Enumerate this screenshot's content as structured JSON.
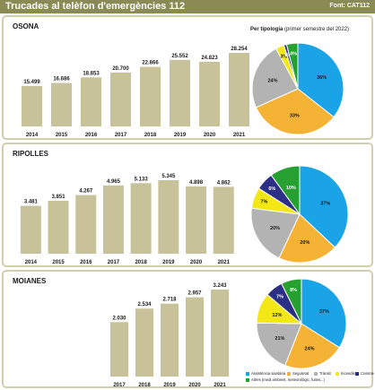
{
  "header": {
    "title": "Trucades al telèfon d'emergències 112",
    "source": "Font: CAT112"
  },
  "pie_title": "Per tipologia",
  "pie_title_note": " (primer semestre del 2022)",
  "colors": {
    "bar": "#c8c29b",
    "header": "#8a8a55",
    "panel_border": "#d2cfae",
    "categories": [
      "#1aa3e6",
      "#f5b335",
      "#b3b3b3",
      "#f3e816",
      "#2b2f86",
      "#26a030"
    ]
  },
  "legend": [
    "Assistència sanitària",
    "Seguretat",
    "Trànsit",
    "Incendis",
    "Civisme",
    "Altres (medi ambient, meteorològic, fuites...)"
  ],
  "chart_data": [
    {
      "type": "bar",
      "title": "OSONA",
      "categories": [
        "2014",
        "2015",
        "2016",
        "2017",
        "2018",
        "2019",
        "2020",
        "2021"
      ],
      "values": [
        15499,
        16686,
        18853,
        20700,
        22866,
        25552,
        24823,
        28254
      ],
      "value_labels": [
        "15.499",
        "16.686",
        "18.853",
        "20.700",
        "22.866",
        "25.552",
        "24.823",
        "28.254"
      ],
      "ylim": [
        0,
        28254
      ]
    },
    {
      "type": "pie",
      "title": "Per tipologia (primer semestre del 2022)",
      "categories": [
        "Assistència sanitària",
        "Seguretat",
        "Trànsit",
        "Incendis",
        "Civisme",
        "Altres (medi ambient, meteorològic, fuites...)"
      ],
      "values": [
        36,
        33,
        24,
        3,
        1,
        4
      ],
      "value_labels": [
        "36%",
        "33%",
        "24%",
        "3%",
        "1%",
        "4%"
      ]
    },
    {
      "type": "bar",
      "title": "RIPOLLES",
      "categories": [
        "2014",
        "2015",
        "2016",
        "2017",
        "2018",
        "2019",
        "2020",
        "2021"
      ],
      "values": [
        3481,
        3851,
        4267,
        4965,
        5133,
        5345,
        4898,
        4862
      ],
      "value_labels": [
        "3.481",
        "3.851",
        "4.267",
        "4.965",
        "5.133",
        "5.345",
        "4.898",
        "4.862"
      ],
      "ylim": [
        0,
        5345
      ]
    },
    {
      "type": "pie",
      "categories": [
        "Assistència sanitària",
        "Seguretat",
        "Trànsit",
        "Incendis",
        "Civisme",
        "Altres (medi ambient, meteorològic, fuites...)"
      ],
      "values": [
        37,
        20,
        20,
        7,
        6,
        10
      ],
      "value_labels": [
        "37%",
        "20%",
        "20%",
        "7%",
        "6%",
        "10%"
      ]
    },
    {
      "type": "bar",
      "title": "MOIANES",
      "categories": [
        "2017",
        "2018",
        "2019",
        "2020",
        "2021"
      ],
      "values": [
        2030,
        2534,
        2718,
        2957,
        3243
      ],
      "value_labels": [
        "2.030",
        "2.534",
        "2.718",
        "2.957",
        "3.243"
      ],
      "ylim": [
        0,
        3243
      ]
    },
    {
      "type": "pie",
      "categories": [
        "Assistència sanitària",
        "Seguretat",
        "Trànsit",
        "Incendis",
        "Civisme",
        "Altres (medi ambient, meteorològic, fuites...)"
      ],
      "values": [
        37,
        24,
        21,
        12,
        7,
        8
      ],
      "value_labels": [
        "37%",
        "24%",
        "21%",
        "12%",
        "7%",
        "8%"
      ]
    }
  ]
}
